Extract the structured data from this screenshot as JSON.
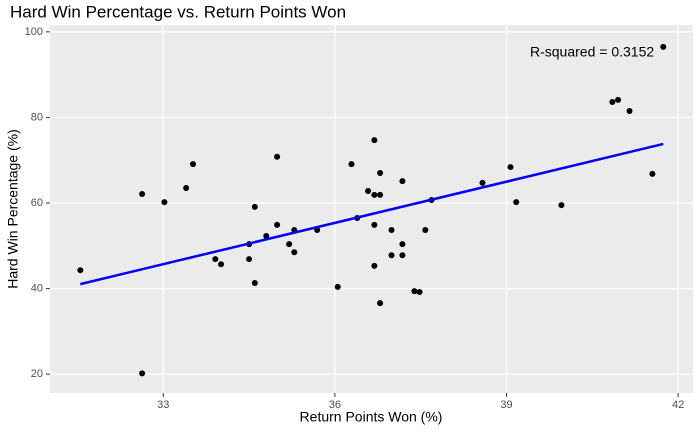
{
  "chart_data": {
    "type": "scatter",
    "title": "Hard Win Percentage vs. Return Points Won",
    "x_label": "Return Points Won (%)",
    "y_label": "Hard Win Percentage (%)",
    "annotation": "R-squared = 0.3152",
    "series": [
      {
        "color": "#000000",
        "x": [
          31.55,
          32.63,
          32.63,
          33.02,
          33.4,
          33.52,
          33.91,
          34.01,
          34.5,
          34.5,
          34.6,
          34.6,
          34.8,
          34.99,
          34.99,
          35.2,
          35.29,
          35.29,
          35.69,
          36.05,
          36.29,
          36.39,
          36.58,
          36.69,
          36.69,
          36.69,
          36.69,
          36.79,
          36.79,
          36.79,
          36.99,
          36.99,
          37.18,
          37.18,
          37.18,
          37.39,
          37.48,
          37.58,
          37.69,
          38.58,
          39.07,
          39.17,
          39.96,
          40.85,
          40.95,
          41.15,
          41.55,
          41.74
        ],
        "values": [
          44.3,
          62.1,
          20.2,
          60.2,
          63.5,
          69.1,
          46.9,
          45.7,
          50.4,
          46.9,
          59.1,
          41.3,
          52.3,
          70.8,
          54.9,
          50.4,
          53.7,
          48.5,
          53.7,
          40.4,
          69.1,
          56.5,
          62.8,
          74.7,
          61.9,
          54.9,
          45.3,
          61.9,
          67.0,
          36.6,
          53.7,
          47.8,
          65.1,
          50.4,
          47.8,
          39.4,
          39.2,
          53.7,
          60.7,
          64.7,
          68.4,
          60.2,
          59.5,
          83.6,
          84.1,
          81.5,
          66.8,
          96.5
        ]
      }
    ],
    "fit": {
      "color": "#0000ff",
      "x": [
        31.55,
        41.74
      ],
      "values": [
        41.05,
        73.8
      ]
    },
    "xlim": [
      31.02,
      42.26
    ],
    "ylim": [
      15.6,
      101.6
    ],
    "xticks": [
      33,
      36,
      39,
      42
    ],
    "yticks": [
      20,
      40,
      60,
      80,
      100
    ],
    "grid": true
  }
}
